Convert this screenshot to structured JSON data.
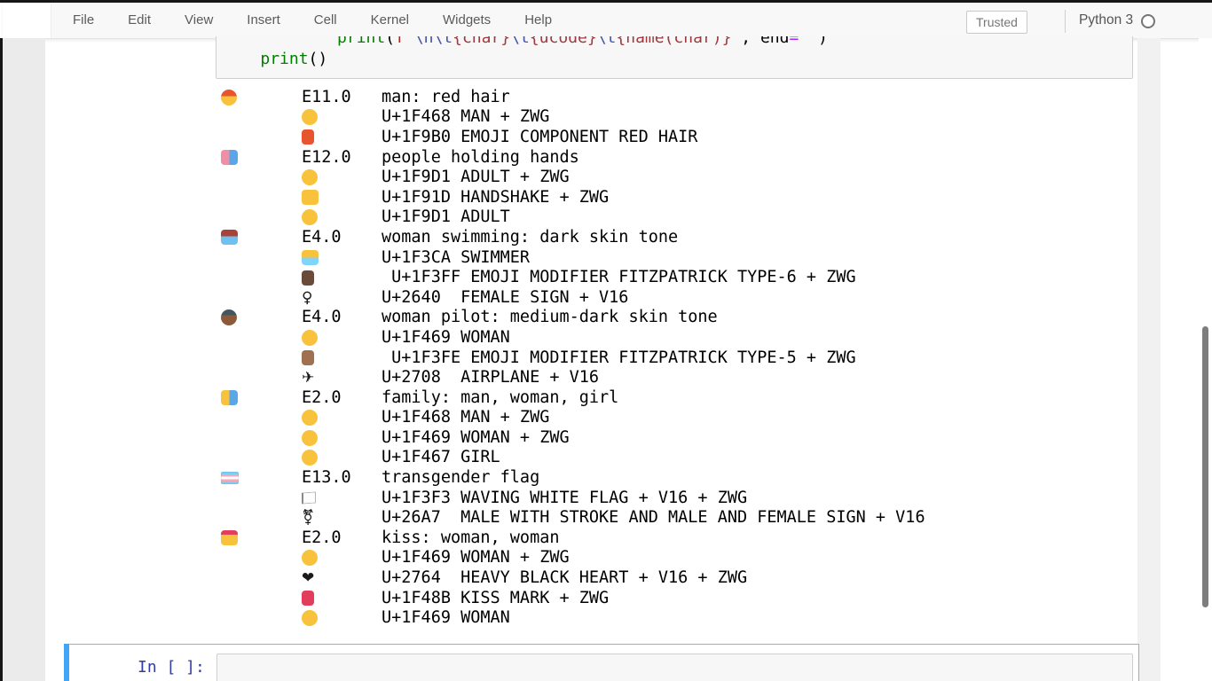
{
  "header": {
    "menu_items": [
      {
        "label": "File"
      },
      {
        "label": "Edit"
      },
      {
        "label": "View"
      },
      {
        "label": "Insert"
      },
      {
        "label": "Cell"
      },
      {
        "label": "Kernel"
      },
      {
        "label": "Widgets"
      },
      {
        "label": "Help"
      }
    ],
    "trusted_label": "Trusted",
    "kernel_name": "Python 3",
    "kernel_status_icon": "kernel-idle-circle-icon"
  },
  "code_cell": {
    "syntax_colors": {
      "plain": "#000000",
      "builtin": "#008000",
      "string": "#ba2121",
      "escape": "#4254a8",
      "interp": "#a0393e",
      "operator": "#aa22ff"
    },
    "lines": [
      [
        {
          "t": "plain",
          "v": "            "
        },
        {
          "t": "builtin",
          "v": "print"
        },
        {
          "t": "plain",
          "v": "("
        },
        {
          "t": "string",
          "v": "f'"
        },
        {
          "t": "escape",
          "v": "\\n\\t"
        },
        {
          "t": "interp",
          "v": "{char}"
        },
        {
          "t": "escape",
          "v": "\\t"
        },
        {
          "t": "interp",
          "v": "{ucode}"
        },
        {
          "t": "escape",
          "v": "\\t"
        },
        {
          "t": "interp",
          "v": "{name(char)}"
        },
        {
          "t": "string",
          "v": "'"
        },
        {
          "t": "plain",
          "v": ", end"
        },
        {
          "t": "operator",
          "v": "="
        },
        {
          "t": "string",
          "v": "''"
        },
        {
          "t": "plain",
          "v": ")"
        }
      ],
      [
        {
          "t": "plain",
          "v": "    "
        },
        {
          "t": "builtin",
          "v": "print"
        },
        {
          "t": "plain",
          "v": "()"
        }
      ]
    ]
  },
  "output": {
    "rows": [
      {
        "emoji": {
          "char": "👨‍🦰",
          "label": "man-red-hair-emoji",
          "type": "face",
          "color": "#e8542e",
          "color2": "#f9c23c",
          "split": 42
        },
        "version": "E11.0",
        "desc": "man: red hair",
        "components": [
          {
            "emoji": {
              "char": "👨",
              "label": "man-emoji",
              "type": "face",
              "color": "#f9c23c"
            },
            "text": "U+1F468 MAN + ZWG"
          },
          {
            "emoji": {
              "char": "🦰",
              "label": "red-hair-component-emoji",
              "type": "swatch",
              "color": "#e8542e"
            },
            "text": "U+1F9B0 EMOJI COMPONENT RED HAIR"
          }
        ]
      },
      {
        "emoji": {
          "char": "🧑‍🤝‍🧑",
          "label": "people-holding-hands-emoji",
          "type": "scene",
          "color": "#ef8fa3",
          "color2": "#5aa7e8",
          "dir": "h",
          "split": 50
        },
        "version": "E12.0",
        "desc": "people holding hands",
        "components": [
          {
            "emoji": {
              "char": "🧑",
              "label": "adult-emoji",
              "type": "face",
              "color": "#f9c23c"
            },
            "text": "U+1F9D1 ADULT + ZWG"
          },
          {
            "emoji": {
              "char": "🤝",
              "label": "handshake-emoji",
              "type": "scene",
              "color": "#f9c23c"
            },
            "text": "U+1F91D HANDSHAKE + ZWG"
          },
          {
            "emoji": {
              "char": "🧑",
              "label": "adult-emoji",
              "type": "face",
              "color": "#f9c23c"
            },
            "text": "U+1F9D1 ADULT"
          }
        ]
      },
      {
        "emoji": {
          "char": "🏊🏿‍♀️",
          "label": "woman-swimming-dark-skin-emoji",
          "type": "scene",
          "color": "#a8433a",
          "color2": "#6fc0ee",
          "split": 45
        },
        "version": "E4.0",
        "desc": "woman swimming: dark skin tone",
        "components": [
          {
            "emoji": {
              "char": "🏊",
              "label": "swimmer-emoji",
              "type": "scene",
              "color": "#f9c23c",
              "color2": "#81d4fa",
              "split": 50
            },
            "text": "U+1F3CA SWIMMER"
          },
          {
            "emoji": {
              "char": "🏿",
              "label": "fitzpatrick-type6-swatch-emoji",
              "type": "swatch",
              "color": "#6b4a3a"
            },
            "text": " U+1F3FF EMOJI MODIFIER FITZPATRICK TYPE-6 + ZWG"
          },
          {
            "emoji": {
              "char": "♀",
              "label": "female-sign-glyph",
              "type": "glyph"
            },
            "text": "U+2640  FEMALE SIGN + V16"
          }
        ]
      },
      {
        "emoji": {
          "char": "👩🏾‍✈️",
          "label": "woman-pilot-medium-dark-skin-emoji",
          "type": "face",
          "color": "#43565f",
          "color2": "#8a5a3b",
          "split": 35
        },
        "version": "E4.0",
        "desc": "woman pilot: medium-dark skin tone",
        "components": [
          {
            "emoji": {
              "char": "👩",
              "label": "woman-emoji",
              "type": "face",
              "color": "#f9c23c"
            },
            "text": "U+1F469 WOMAN"
          },
          {
            "emoji": {
              "char": "🏾",
              "label": "fitzpatrick-type5-swatch-emoji",
              "type": "swatch",
              "color": "#a0714f"
            },
            "text": " U+1F3FE EMOJI MODIFIER FITZPATRICK TYPE-5 + ZWG"
          },
          {
            "emoji": {
              "char": "✈",
              "label": "airplane-glyph",
              "type": "glyph"
            },
            "text": "U+2708  AIRPLANE + V16"
          }
        ]
      },
      {
        "emoji": {
          "char": "👨‍👩‍👧",
          "label": "family-man-woman-girl-emoji",
          "type": "scene",
          "color": "#f9c23c",
          "color2": "#5aa7e8",
          "dir": "h",
          "split": 50
        },
        "version": "E2.0",
        "desc": "family: man, woman, girl",
        "components": [
          {
            "emoji": {
              "char": "👨",
              "label": "man-emoji",
              "type": "face",
              "color": "#f9c23c"
            },
            "text": "U+1F468 MAN + ZWG"
          },
          {
            "emoji": {
              "char": "👩",
              "label": "woman-emoji",
              "type": "face",
              "color": "#f9c23c"
            },
            "text": "U+1F469 WOMAN + ZWG"
          },
          {
            "emoji": {
              "char": "👧",
              "label": "girl-emoji",
              "type": "face",
              "color": "#f9c23c"
            },
            "text": "U+1F467 GIRL"
          }
        ]
      },
      {
        "emoji": {
          "char": "🏳️‍⚧️",
          "label": "transgender-flag-emoji",
          "type": "flag",
          "color": "#7bcff5",
          "color2": "#f5a9b8"
        },
        "version": "E13.0",
        "desc": "transgender flag",
        "components": [
          {
            "emoji": {
              "char": "🏳",
              "label": "waving-white-flag-emoji",
              "type": "whiteflag"
            },
            "text": "U+1F3F3 WAVING WHITE FLAG + V16 + ZWG"
          },
          {
            "emoji": {
              "char": "⚧",
              "label": "transgender-symbol-glyph",
              "type": "glyph"
            },
            "text": "U+26A7  MALE WITH STROKE AND MALE AND FEMALE SIGN + V16"
          }
        ]
      },
      {
        "emoji": {
          "char": "👩‍❤️‍💋‍👩",
          "label": "kiss-woman-woman-emoji",
          "type": "scene",
          "color": "#e23d5b",
          "color2": "#f9c23c",
          "split": 30
        },
        "version": "E2.0",
        "desc": "kiss: woman, woman",
        "components": [
          {
            "emoji": {
              "char": "👩",
              "label": "woman-emoji",
              "type": "face",
              "color": "#f9c23c"
            },
            "text": "U+1F469 WOMAN + ZWG"
          },
          {
            "emoji": {
              "char": "❤",
              "label": "heavy-black-heart-glyph",
              "type": "glyph"
            },
            "text": "U+2764  HEAVY BLACK HEART + V16 + ZWG"
          },
          {
            "emoji": {
              "char": "💋",
              "label": "kiss-mark-emoji",
              "type": "swatch",
              "color": "#e23d5b"
            },
            "text": "U+1F48B KISS MARK + ZWG"
          },
          {
            "emoji": {
              "char": "👩",
              "label": "woman-emoji",
              "type": "face",
              "color": "#f9c23c"
            },
            "text": "U+1F469 WOMAN"
          }
        ]
      }
    ]
  },
  "empty_cell": {
    "prompt": "In [ ]:",
    "value": ""
  }
}
